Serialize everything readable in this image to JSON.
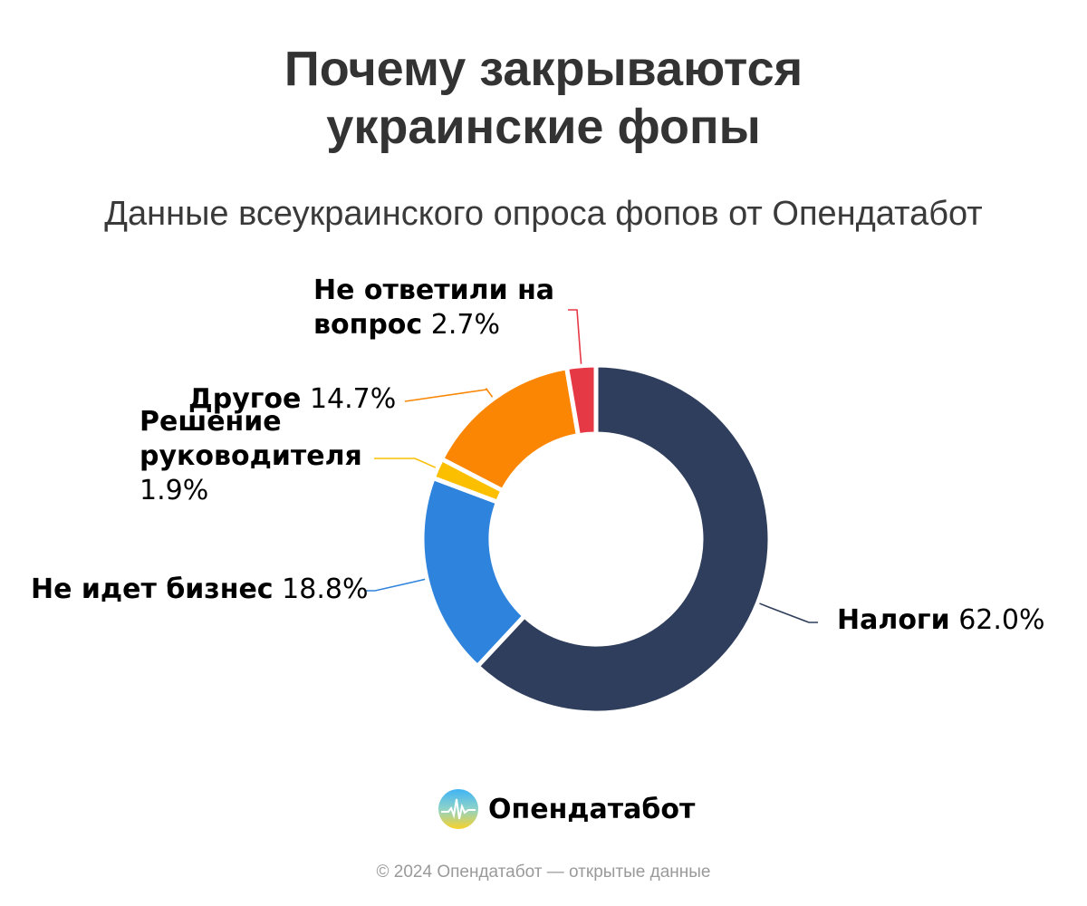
{
  "title_lines": [
    "Почему закрываются",
    "украинские фопы"
  ],
  "subtitle": "Данные всеукраинского опроса фопов от Опендатабот",
  "chart_data": {
    "type": "pie",
    "donut": true,
    "slices": [
      {
        "name": "Налоги",
        "value": 62.0,
        "label": "62.0%",
        "color": "#2f3e5c"
      },
      {
        "name": "Не идет бизнес",
        "value": 18.8,
        "label": "18.8%",
        "color": "#2e83dc"
      },
      {
        "name": "Решение руководителя",
        "value": 1.9,
        "label": "1.9%",
        "color": "#fbbf00"
      },
      {
        "name": "Другое",
        "value": 14.7,
        "label": "14.7%",
        "color": "#fb8603"
      },
      {
        "name": "Не ответили на вопрос",
        "value": 2.7,
        "label": "2.7%",
        "color": "#e63946"
      }
    ]
  },
  "labels": {
    "taxes": {
      "name": "Налоги",
      "pct": "62.0%"
    },
    "no_business": {
      "name": "Не идет бизнес",
      "pct": "18.8%"
    },
    "manager_decision": {
      "line1": "Решение",
      "line2": "руководителя",
      "pct": "1.9%"
    },
    "other": {
      "name": "Другое",
      "pct": "14.7%"
    },
    "no_answer": {
      "line1": "Не ответили на",
      "line2": "вопрос",
      "pct": "2.7%"
    }
  },
  "logo": {
    "name": "Опендатабот",
    "icon": "opendatabot-logo-icon"
  },
  "footer": "© 2024 Опендатабот — открытые данные"
}
